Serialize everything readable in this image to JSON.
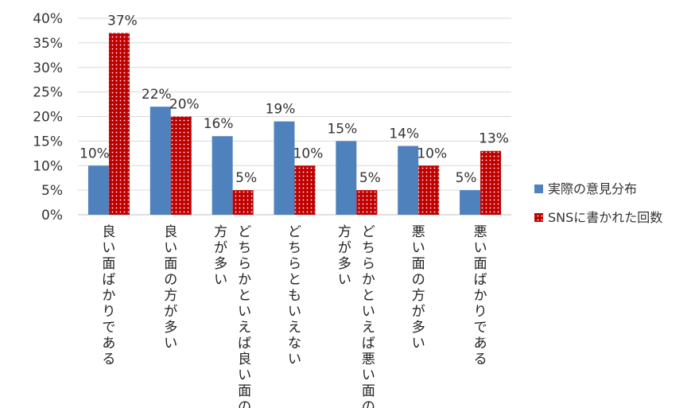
{
  "chart_data": {
    "type": "bar",
    "categories": [
      "良い面ばかりである",
      "良い面の方が多い",
      "どちらかといえば良い面の方が多い",
      "どちらともいえない",
      "どちらかといえば悪い面の方が多い",
      "悪い面の方が多い",
      "悪い面ばかりである"
    ],
    "category_label_lines": [
      [
        "良い面ばかりである"
      ],
      [
        "良い面の方が多い"
      ],
      [
        "どちらかといえば良い面の",
        "方が多い"
      ],
      [
        "どちらともいえない"
      ],
      [
        "どちらかといえば悪い面の",
        "方が多い"
      ],
      [
        "悪い面の方が多い"
      ],
      [
        "悪い面ばかりである"
      ]
    ],
    "series": [
      {
        "name": "実際の意見分布",
        "values": [
          10,
          22,
          16,
          19,
          15,
          14,
          5
        ],
        "labels": [
          "10%",
          "22%",
          "16%",
          "19%",
          "15%",
          "14%",
          "5%"
        ],
        "color": "#4f81bd"
      },
      {
        "name": "SNSに書かれた回数",
        "values": [
          37,
          20,
          5,
          10,
          5,
          10,
          13
        ],
        "labels": [
          "37%",
          "20%",
          "5%",
          "10%",
          "5%",
          "10%",
          "13%"
        ],
        "color": "#c00000"
      }
    ],
    "y_ticks": [
      "0%",
      "5%",
      "10%",
      "15%",
      "20%",
      "25%",
      "30%",
      "35%",
      "40%"
    ],
    "ylim": [
      0,
      40
    ],
    "grid": true,
    "legend_position": "right"
  }
}
